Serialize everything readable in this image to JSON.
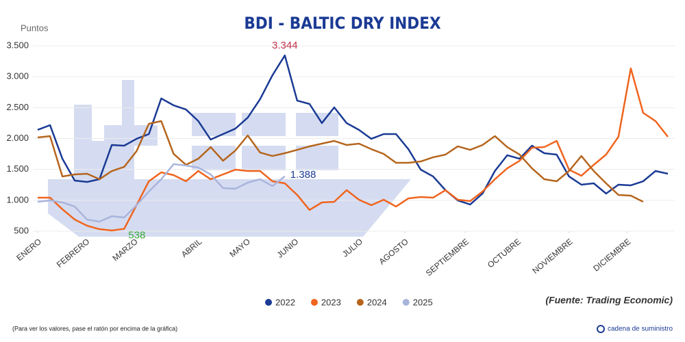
{
  "chart_data": {
    "type": "line",
    "title": "BDI - BALTIC DRY INDEX",
    "y_label": "Puntos",
    "source": "(Fuente: Trading Economic)",
    "footer": "(Para ver los valores, pase el ratón por encima de la gráfica)",
    "logo": "cadena de suministro",
    "xlim": [
      0,
      51
    ],
    "xticks": [
      {
        "value": 0,
        "label": "ENERO"
      },
      {
        "value": 3.9,
        "label": "FEBRERO"
      },
      {
        "value": 7.8,
        "label": "MARZO"
      },
      {
        "value": 13,
        "label": "ABRIL"
      },
      {
        "value": 16.9,
        "label": "MAYO"
      },
      {
        "value": 20.8,
        "label": "JUNIO"
      },
      {
        "value": 26,
        "label": "JULIO"
      },
      {
        "value": 29.7,
        "label": "AGOSTO"
      },
      {
        "value": 34.6,
        "label": "SEPTIEMBRE"
      },
      {
        "value": 38.8,
        "label": "OCTUBRE"
      },
      {
        "value": 43,
        "label": "NOVIEMBRE"
      },
      {
        "value": 47.7,
        "label": "DICIEMBRE"
      }
    ],
    "ylim": [
      500,
      3500
    ],
    "yticks": [
      500,
      {
        "value": 1000,
        "label": "1.000"
      },
      {
        "value": 1500,
        "label": "1.500"
      },
      {
        "value": 2000,
        "label": "2.000"
      },
      {
        "value": 2500,
        "label": "2.500"
      },
      {
        "value": 3000,
        "label": "3.000"
      },
      {
        "value": 3500,
        "label": "3.500"
      }
    ],
    "grid": true,
    "legend": "bottom",
    "x": [
      0,
      1,
      2,
      3,
      4,
      5,
      6,
      7,
      8,
      9,
      10,
      11,
      12,
      13,
      14,
      15,
      16,
      17,
      18,
      19,
      20,
      21,
      22,
      23,
      24,
      25,
      26,
      27,
      28,
      29,
      30,
      31,
      32,
      33,
      34,
      35,
      36,
      37,
      38,
      39,
      40,
      41,
      42,
      43,
      44,
      45,
      46,
      47,
      48,
      49,
      50,
      51
    ],
    "series": [
      {
        "name": "2022",
        "color": "#1a3a94",
        "label_color": "#c0304a",
        "values": [
          2140,
          2216,
          1673,
          1319,
          1297,
          1341,
          1895,
          1884,
          1995,
          2072,
          2648,
          2537,
          2470,
          2282,
          1983,
          2072,
          2160,
          2338,
          2637,
          3024,
          3344,
          2614,
          2559,
          2250,
          2504,
          2250,
          2140,
          1995,
          2072,
          2072,
          1828,
          1496,
          1386,
          1164,
          998,
          932,
          1109,
          1474,
          1729,
          1673,
          1884,
          1762,
          1740,
          1386,
          1253,
          1275,
          1109,
          1253,
          1242,
          1308,
          1474,
          1430
        ],
        "value_labels": [
          null,
          null,
          null,
          null,
          null,
          null,
          null,
          null,
          null,
          null,
          null,
          null,
          null,
          null,
          null,
          null,
          null,
          null,
          null,
          null,
          "3.344",
          null,
          null,
          null,
          null,
          null,
          null,
          null,
          null,
          null,
          null,
          null,
          null,
          null,
          null,
          null,
          null,
          null,
          null,
          null,
          null,
          null,
          null,
          null,
          null,
          null,
          null,
          null,
          null,
          null,
          null,
          null
        ]
      },
      {
        "name": "2023",
        "color": "#f0641e",
        "label_color": "#3aa83a",
        "values": [
          1043,
          1043,
          855,
          688,
          589,
          533,
          511,
          538,
          921,
          1308,
          1452,
          1408,
          1308,
          1474,
          1341,
          1419,
          1496,
          1474,
          1474,
          1308,
          1275,
          1087,
          844,
          965,
          976,
          1164,
          1009,
          921,
          1009,
          899,
          1031,
          1054,
          1043,
          1164,
          1009,
          987,
          1142,
          1341,
          1518,
          1640,
          1850,
          1861,
          1961,
          1496,
          1397,
          1574,
          1740,
          2028,
          3135,
          2415,
          2282,
          2028
        ],
        "value_labels": [
          null,
          null,
          null,
          null,
          null,
          null,
          null,
          "538",
          null,
          null,
          null,
          null,
          null,
          null,
          null,
          null,
          null,
          null,
          null,
          null,
          null,
          null,
          null,
          null,
          null,
          null,
          null,
          null,
          null,
          null,
          null,
          null,
          null,
          null,
          null,
          null,
          null,
          null,
          null,
          null,
          null,
          null,
          null,
          null,
          null,
          null,
          null,
          null,
          null,
          null,
          null,
          null
        ]
      },
      {
        "name": "2024",
        "color": "#b5651d",
        "values": [
          2017,
          2039,
          1386,
          1419,
          1430,
          1341,
          1474,
          1541,
          1795,
          2238,
          2282,
          1751,
          1574,
          1673,
          1861,
          1640,
          1806,
          2050,
          1773,
          1717,
          1762,
          1817,
          1873,
          1917,
          1961,
          1895,
          1917,
          1828,
          1751,
          1607,
          1607,
          1629,
          1696,
          1740,
          1873,
          1817,
          1895,
          2039,
          1861,
          1740,
          1518,
          1341,
          1308,
          1474,
          1717,
          1474,
          1275,
          1087,
          1076,
          976,
          null,
          null
        ]
      },
      {
        "name": "2025",
        "color": "#a9b4dc",
        "label_color": "#1a3a94",
        "values": [
          976,
          998,
          965,
          899,
          688,
          655,
          743,
          721,
          921,
          1142,
          1341,
          1585,
          1563,
          1530,
          1419,
          1198,
          1187,
          1286,
          1341,
          1230,
          1388,
          null,
          null,
          null,
          null,
          null,
          null,
          null,
          null,
          null,
          null,
          null,
          null,
          null,
          null,
          null,
          null,
          null,
          null,
          null,
          null,
          null,
          null,
          null,
          null,
          null,
          null,
          null,
          null,
          null,
          null,
          null
        ],
        "value_labels": [
          null,
          null,
          null,
          null,
          null,
          null,
          null,
          null,
          null,
          null,
          null,
          null,
          null,
          null,
          null,
          null,
          null,
          null,
          null,
          null,
          "1.388",
          null,
          null,
          null,
          null,
          null,
          null,
          null,
          null,
          null,
          null,
          null,
          null,
          null,
          null,
          null,
          null,
          null,
          null,
          null,
          null,
          null,
          null,
          null,
          null,
          null,
          null,
          null,
          null,
          null,
          null,
          null
        ]
      }
    ]
  }
}
